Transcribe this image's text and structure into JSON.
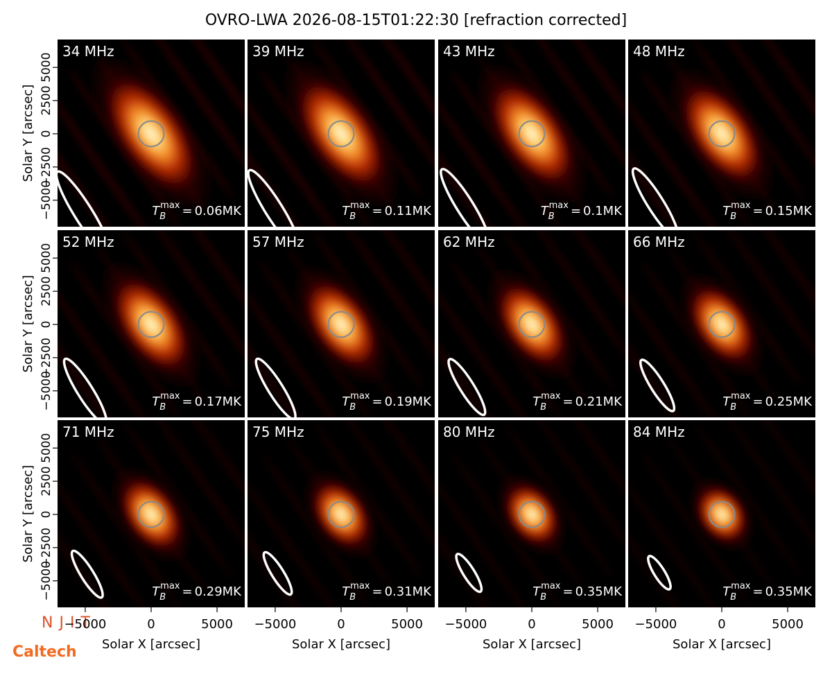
{
  "title": "OVRO-LWA 2026-08-15T01:22:30 [refraction corrected]",
  "xlabel": "Solar X [arcsec]",
  "ylabel": "Solar Y [arcsec]",
  "xlim": [
    -7100,
    7100
  ],
  "ylim": [
    -7000,
    7100
  ],
  "xticks": [
    {
      "value": -5000,
      "label": "−5000"
    },
    0,
    5000
  ],
  "yticks": [
    {
      "value": -5000,
      "label": "−5000"
    },
    {
      "value": -2500,
      "label": "−2500"
    },
    0,
    2500,
    5000
  ],
  "tmax_symbol": {
    "base": "T",
    "sub": "B",
    "sup": "max",
    "eq": "="
  },
  "panels": [
    {
      "freq": "34 MHz",
      "tmax": "0.06MK"
    },
    {
      "freq": "39 MHz",
      "tmax": "0.11MK"
    },
    {
      "freq": "43 MHz",
      "tmax": "0.1MK"
    },
    {
      "freq": "48 MHz",
      "tmax": "0.15MK"
    },
    {
      "freq": "52 MHz",
      "tmax": "0.17MK"
    },
    {
      "freq": "57 MHz",
      "tmax": "0.19MK"
    },
    {
      "freq": "62 MHz",
      "tmax": "0.21MK"
    },
    {
      "freq": "66 MHz",
      "tmax": "0.25MK"
    },
    {
      "freq": "71 MHz",
      "tmax": "0.29MK"
    },
    {
      "freq": "75 MHz",
      "tmax": "0.31MK"
    },
    {
      "freq": "80 MHz",
      "tmax": "0.35MK"
    },
    {
      "freq": "84 MHz",
      "tmax": "0.35MK"
    }
  ],
  "logos": [
    "NJIT",
    "Caltech"
  ]
}
